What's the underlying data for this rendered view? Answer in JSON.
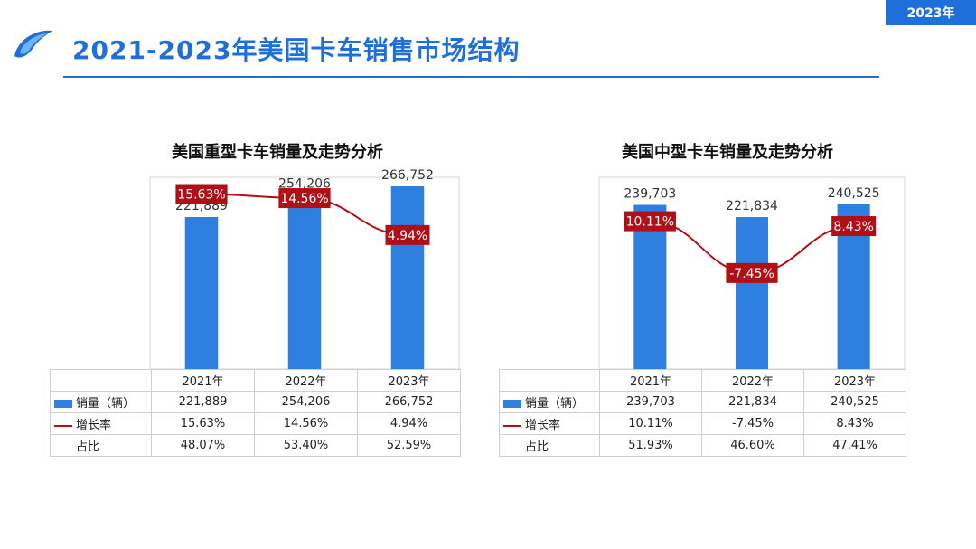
{
  "header": {
    "badge": "2023年",
    "title": "2021-2023年美国卡车销售市场结构"
  },
  "colors": {
    "accent": "#1e6fd9",
    "bar": "#2e7fe0",
    "line": "#b10f16"
  },
  "legend": {
    "sales": "销量（辆）",
    "growth": "增长率",
    "share": "占比"
  },
  "chart_data": [
    {
      "type": "bar",
      "title": "美国重型卡车销量及走势分析",
      "categories": [
        "2021年",
        "2022年",
        "2023年"
      ],
      "series": [
        {
          "name": "销量（辆）",
          "type": "bar",
          "values": [
            221889,
            254206,
            266752
          ],
          "labels": [
            "221,889",
            "254,206",
            "266,752"
          ]
        },
        {
          "name": "增长率",
          "type": "line",
          "values": [
            15.63,
            14.56,
            4.94
          ],
          "labels": [
            "15.63%",
            "14.56%",
            "4.94%"
          ]
        }
      ],
      "table": {
        "sales": [
          "221,889",
          "254,206",
          "266,752"
        ],
        "growth": [
          "15.63%",
          "14.56%",
          "4.94%"
        ],
        "share": [
          "48.07%",
          "53.40%",
          "52.59%"
        ]
      },
      "ylim": [
        0,
        280000
      ],
      "growth_range": [
        -30,
        20
      ]
    },
    {
      "type": "bar",
      "title": "美国中型卡车销量及走势分析",
      "categories": [
        "2021年",
        "2022年",
        "2023年"
      ],
      "series": [
        {
          "name": "销量（辆）",
          "type": "bar",
          "values": [
            239703,
            221834,
            240525
          ],
          "labels": [
            "239,703",
            "221,834",
            "240,525"
          ]
        },
        {
          "name": "增长率",
          "type": "line",
          "values": [
            10.11,
            -7.45,
            8.43
          ],
          "labels": [
            "10.11%",
            "-7.45%",
            "8.43%"
          ]
        }
      ],
      "table": {
        "sales": [
          "239,703",
          "221,834",
          "240,525"
        ],
        "growth": [
          "10.11%",
          "-7.45%",
          "8.43%"
        ],
        "share": [
          "51.93%",
          "46.60%",
          "47.41%"
        ]
      },
      "ylim": [
        0,
        280000
      ],
      "growth_range": [
        -40,
        25
      ]
    }
  ]
}
